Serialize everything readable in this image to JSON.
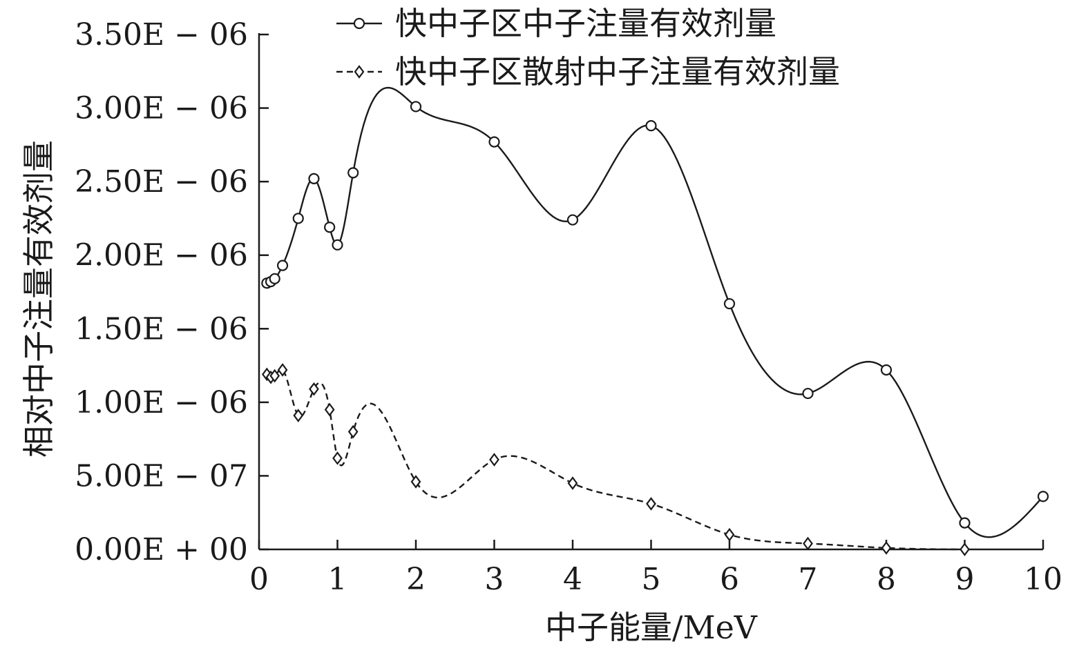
{
  "chart_data": {
    "type": "line",
    "title": "",
    "xlabel": "中子能量/MeV",
    "ylabel": "相对中子注量有效剂量",
    "xlim": [
      0,
      10
    ],
    "ylim": [
      0,
      3.5e-06
    ],
    "x_ticks": [
      0,
      1,
      2,
      3,
      4,
      5,
      6,
      7,
      8,
      9,
      10
    ],
    "y_ticks": [
      {
        "value": 0,
        "label": "0.00E + 00"
      },
      {
        "value": 5e-07,
        "label": "5.00E − 07"
      },
      {
        "value": 1e-06,
        "label": "1.00E − 06"
      },
      {
        "value": 1.5e-06,
        "label": "1.50E − 06"
      },
      {
        "value": 2e-06,
        "label": "2.00E − 06"
      },
      {
        "value": 2.5e-06,
        "label": "2.50E − 06"
      },
      {
        "value": 3e-06,
        "label": "3.00E − 06"
      },
      {
        "value": 3.5e-06,
        "label": "3.50E − 06"
      }
    ],
    "grid": false,
    "legend_position": "top",
    "series": [
      {
        "name": "快中子区中子注量有效剂量",
        "line_style": "solid",
        "marker": "circle",
        "color": "#1a1a1a",
        "x": [
          0.1,
          0.15,
          0.2,
          0.3,
          0.5,
          0.7,
          0.9,
          1.0,
          1.2,
          2,
          3,
          4,
          5,
          6,
          7,
          8,
          9,
          10
        ],
        "y": [
          1.81e-06,
          1.82e-06,
          1.84e-06,
          1.93e-06,
          2.25e-06,
          2.52e-06,
          2.19e-06,
          2.07e-06,
          2.56e-06,
          3.01e-06,
          2.77e-06,
          2.24e-06,
          2.88e-06,
          1.67e-06,
          1.06e-06,
          1.22e-06,
          1.8e-07,
          3.6e-07
        ]
      },
      {
        "name": "快中子区散射中子注量有效剂量",
        "line_style": "dashed",
        "marker": "diamond",
        "color": "#1a1a1a",
        "x": [
          0.1,
          0.15,
          0.2,
          0.3,
          0.5,
          0.7,
          0.9,
          1.0,
          1.2,
          2,
          3,
          4,
          5,
          6,
          7,
          8,
          9
        ],
        "y": [
          1.19e-06,
          1.17e-06,
          1.18e-06,
          1.22e-06,
          9.1e-07,
          1.09e-06,
          9.5e-07,
          6.2e-07,
          8e-07,
          4.6e-07,
          6.1e-07,
          4.5e-07,
          3.1e-07,
          1e-07,
          4e-08,
          1e-08,
          0
        ]
      }
    ]
  }
}
